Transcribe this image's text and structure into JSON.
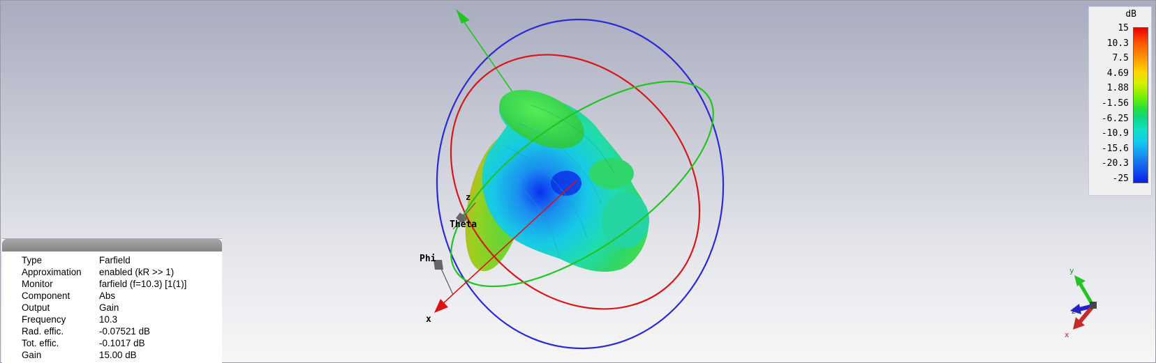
{
  "view": {
    "axis_labels": {
      "x": "x",
      "z": "z",
      "theta": "Theta",
      "phi": "Phi"
    },
    "mini_axes": {
      "x": "x",
      "y": "y",
      "z": "z"
    },
    "colors": {
      "x_axis": "#e01010",
      "y_axis": "#20c020",
      "z_axis": "#2020d0",
      "ring_blue": "#2a2ad8",
      "ring_red": "#d81818",
      "ring_green": "#22c422"
    }
  },
  "legend": {
    "unit": "dB",
    "ticks": [
      "15",
      "10.3",
      "7.5",
      "4.69",
      "1.88",
      "-1.56",
      "-6.25",
      "-10.9",
      "-15.6",
      "-20.3",
      "-25"
    ]
  },
  "info": {
    "rows": [
      {
        "key": "Type",
        "value": "Farfield"
      },
      {
        "key": "Approximation",
        "value": "enabled (kR >> 1)"
      },
      {
        "key": "Monitor",
        "value": "farfield (f=10.3) [1(1)]"
      },
      {
        "key": "Component",
        "value": "Abs"
      },
      {
        "key": "Output",
        "value": "Gain"
      },
      {
        "key": "Frequency",
        "value": "10.3"
      },
      {
        "key": "Rad. effic.",
        "value": "-0.07521 dB"
      },
      {
        "key": "Tot. effic.",
        "value": "-0.1017 dB"
      },
      {
        "key": "Gain",
        "value": "15.00 dB"
      }
    ]
  }
}
